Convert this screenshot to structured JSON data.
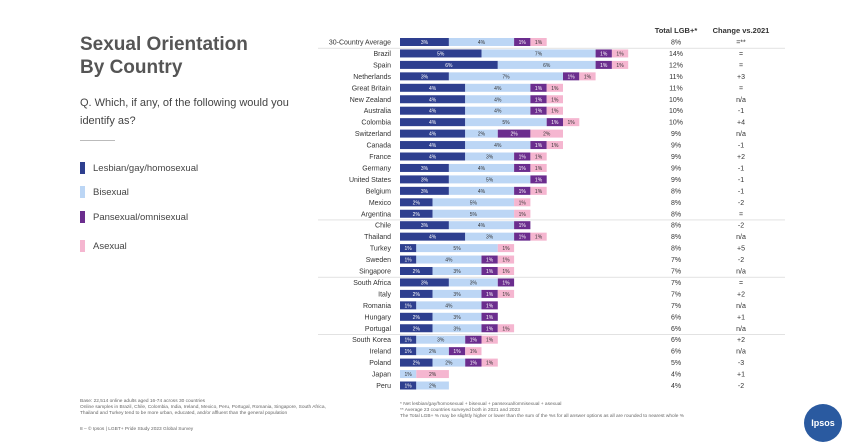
{
  "header": {
    "title_line1": "Sexual Orientation",
    "title_line2": "By Country",
    "question": "Q. Which, if any, of the following would you identify as?"
  },
  "legend": [
    {
      "label": "Lesbian/gay/homosexual",
      "color": "#2e3f8f"
    },
    {
      "label": "Bisexual",
      "color": "#bcd6f5"
    },
    {
      "label": "Pansexual/omnisexual",
      "color": "#6b2d8e"
    },
    {
      "label": "Asexual",
      "color": "#f5b6d0"
    }
  ],
  "columns": {
    "total_header": "Total LGB+*",
    "change_header": "Change vs.2021"
  },
  "chart_data": {
    "type": "bar",
    "orientation": "horizontal-stacked",
    "series_names": [
      "Lesbian/gay/homosexual",
      "Bisexual",
      "Pansexual/omnisexual",
      "Asexual"
    ],
    "colors": [
      "#2e3f8f",
      "#bcd6f5",
      "#6b2d8e",
      "#f5b6d0"
    ],
    "rows": [
      {
        "country": "30-Country Average",
        "values": [
          3,
          4,
          1,
          1
        ],
        "total": "8%",
        "change": "=**"
      },
      {
        "country": "Brazil",
        "values": [
          5,
          7,
          1,
          1
        ],
        "total": "14%",
        "change": "="
      },
      {
        "country": "Spain",
        "values": [
          6,
          6,
          1,
          1
        ],
        "total": "12%",
        "change": "="
      },
      {
        "country": "Netherlands",
        "values": [
          3,
          7,
          1,
          1
        ],
        "total": "11%",
        "change": "+3"
      },
      {
        "country": "Great Britain",
        "values": [
          4,
          4,
          1,
          1
        ],
        "total": "11%",
        "change": "="
      },
      {
        "country": "New Zealand",
        "values": [
          4,
          4,
          1,
          1
        ],
        "total": "10%",
        "change": "n/a"
      },
      {
        "country": "Australia",
        "values": [
          4,
          4,
          1,
          1
        ],
        "total": "10%",
        "change": "-1"
      },
      {
        "country": "Colombia",
        "values": [
          4,
          5,
          1,
          1
        ],
        "total": "10%",
        "change": "+4"
      },
      {
        "country": "Switzerland",
        "values": [
          4,
          2,
          2,
          2
        ],
        "total": "9%",
        "change": "n/a"
      },
      {
        "country": "Canada",
        "values": [
          4,
          4,
          1,
          1
        ],
        "total": "9%",
        "change": "-1"
      },
      {
        "country": "France",
        "values": [
          4,
          3,
          1,
          1
        ],
        "total": "9%",
        "change": "+2"
      },
      {
        "country": "Germany",
        "values": [
          3,
          4,
          1,
          1
        ],
        "total": "9%",
        "change": "-1"
      },
      {
        "country": "United States",
        "values": [
          3,
          5,
          1,
          0
        ],
        "total": "9%",
        "change": "-1"
      },
      {
        "country": "Belgium",
        "values": [
          3,
          4,
          1,
          1
        ],
        "total": "8%",
        "change": "-1"
      },
      {
        "country": "Mexico",
        "values": [
          2,
          5,
          0,
          1
        ],
        "total": "8%",
        "change": "-2"
      },
      {
        "country": "Argentina",
        "values": [
          2,
          5,
          0,
          1
        ],
        "total": "8%",
        "change": "="
      },
      {
        "country": "Chile",
        "values": [
          3,
          4,
          1,
          0
        ],
        "total": "8%",
        "change": "-2"
      },
      {
        "country": "Thailand",
        "values": [
          4,
          3,
          1,
          1
        ],
        "total": "8%",
        "change": "n/a"
      },
      {
        "country": "Turkey",
        "values": [
          1,
          5,
          0,
          1
        ],
        "total": "8%",
        "change": "+5"
      },
      {
        "country": "Sweden",
        "values": [
          1,
          4,
          1,
          1
        ],
        "total": "7%",
        "change": "-2"
      },
      {
        "country": "Singapore",
        "values": [
          2,
          3,
          1,
          1
        ],
        "total": "7%",
        "change": "n/a"
      },
      {
        "country": "South Africa",
        "values": [
          3,
          3,
          1,
          0
        ],
        "total": "7%",
        "change": "="
      },
      {
        "country": "Italy",
        "values": [
          2,
          3,
          1,
          1
        ],
        "total": "7%",
        "change": "+2"
      },
      {
        "country": "Romania",
        "values": [
          1,
          4,
          1,
          0
        ],
        "total": "7%",
        "change": "n/a"
      },
      {
        "country": "Hungary",
        "values": [
          2,
          3,
          1,
          0
        ],
        "total": "6%",
        "change": "+1"
      },
      {
        "country": "Portugal",
        "values": [
          2,
          3,
          1,
          1
        ],
        "total": "6%",
        "change": "n/a"
      },
      {
        "country": "South Korea",
        "values": [
          1,
          3,
          1,
          1
        ],
        "total": "6%",
        "change": "+2"
      },
      {
        "country": "Ireland",
        "values": [
          1,
          2,
          1,
          1
        ],
        "total": "6%",
        "change": "n/a"
      },
      {
        "country": "Poland",
        "values": [
          2,
          2,
          1,
          1
        ],
        "total": "5%",
        "change": "-3"
      },
      {
        "country": "Japan",
        "values": [
          0,
          1,
          0,
          2
        ],
        "total": "4%",
        "change": "+1"
      },
      {
        "country": "Peru",
        "values": [
          1,
          2,
          0,
          0
        ],
        "total": "4%",
        "change": "-2"
      }
    ]
  },
  "footer": {
    "base_line1": "Base: 22,514 online adults aged 16-74 across 30 countries",
    "base_line2": "Online samples in Brazil, Chile, Colombia, India, Ireland, Mexico, Peru, Portugal, Romania, Singapore, South Africa,",
    "base_line3": "Thailand and Turkey tend to be more urban, educated, and/or affluent than the general population",
    "page_line": "8 –  © Ipsos | LGBT+ Pride Study 2023 Global Survey",
    "note1": "* Net lesbian/gay/homosexual + bisexual + pansexual/omnisexual + asexual",
    "note2": "** Average 23 countries surveyed both in 2021 and 2023",
    "note3": "The Total LGB+ % may be slightly higher or lower than the sum of the %s for all answer options as all are rounded to nearest whole %",
    "logo": "Ipsos"
  }
}
